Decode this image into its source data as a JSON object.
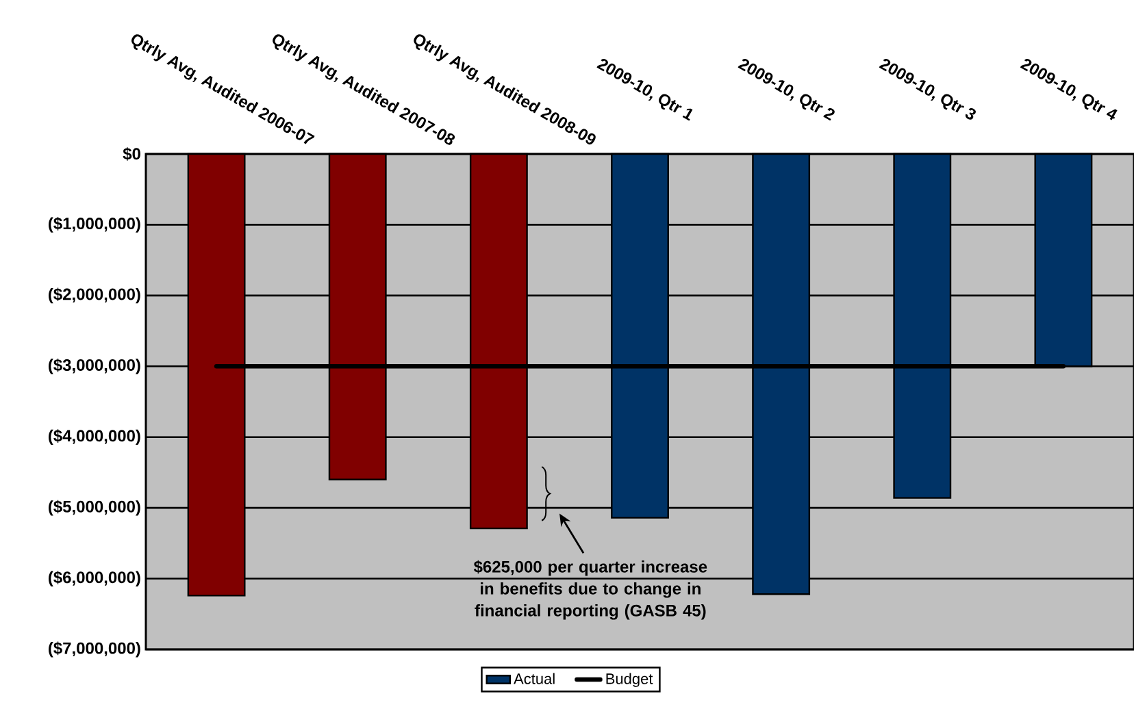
{
  "chart_data": {
    "type": "bar",
    "categories": [
      "Qtrly Avg, Audited 2006-07",
      "Qtrly Avg, Audited 2007-08",
      "Qtrly Avg, Audited 2008-09",
      "2009-10, Qtr 1",
      "2009-10, Qtr 2",
      "2009-10, Qtr 3",
      "2009-10, Qtr 4"
    ],
    "series": [
      {
        "name": "Actual",
        "color": "#003366",
        "colors": [
          "#800000",
          "#800000",
          "#800000",
          "#003366",
          "#003366",
          "#003366",
          "#003366"
        ],
        "values": [
          -6240000,
          -4600000,
          -5290000,
          -5140000,
          -6220000,
          -4860000,
          -3000000
        ]
      }
    ],
    "ref_lines": [
      {
        "axis": "y",
        "value": -3000000,
        "label": "Budget",
        "color": "#000000",
        "line_style": "solid"
      }
    ],
    "ylim": [
      -7000000,
      0
    ],
    "yticks": [
      {
        "value": -7000000,
        "label": "($7,000,000)"
      },
      {
        "value": -6000000,
        "label": "($6,000,000)"
      },
      {
        "value": -5000000,
        "label": "($5,000,000)"
      },
      {
        "value": -4000000,
        "label": "($4,000,000)"
      },
      {
        "value": -3000000,
        "label": "($3,000,000)"
      },
      {
        "value": -2000000,
        "label": "($2,000,000)"
      },
      {
        "value": -1000000,
        "label": "($1,000,000)"
      },
      {
        "value": 0,
        "label": "$0"
      }
    ],
    "grid": "y",
    "legend": "bottom",
    "annotations": [
      "$625,000 per quarter increase in benefits due to change in financial reporting (GASB 45)"
    ]
  }
}
